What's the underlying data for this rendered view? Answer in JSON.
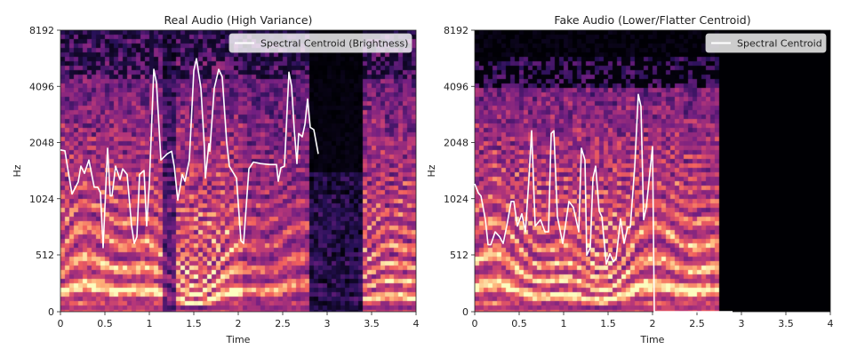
{
  "chart_data": [
    {
      "type": "heatmap",
      "title": "Real Audio (High Variance)",
      "xlabel": "Time",
      "ylabel": "Hz",
      "xlim": [
        0,
        4
      ],
      "ylim": [
        0,
        8192
      ],
      "y_scale": "log",
      "colormap": "magma",
      "xticks": [
        "0",
        "0.5",
        "1",
        "1.5",
        "2",
        "2.5",
        "3",
        "3.5",
        "4"
      ],
      "yticks": [
        "0",
        "512",
        "1024",
        "2048",
        "4096",
        "8192"
      ],
      "legend": {
        "placement": "top-right",
        "entries": [
          "Spectral Centroid (Brightness)"
        ]
      },
      "series": [
        {
          "name": "Spectral Centroid (Brightness)",
          "type": "line",
          "color": "#ffffff",
          "t": [
            0,
            0.05,
            0.1,
            0.13,
            0.2,
            0.23,
            0.27,
            0.32,
            0.38,
            0.42,
            0.45,
            0.48,
            0.5,
            0.53,
            0.56,
            0.58,
            0.62,
            0.67,
            0.7,
            0.75,
            0.8,
            0.83,
            0.86,
            0.89,
            0.94,
            0.97,
            1.0,
            1.05,
            1.08,
            1.13,
            1.2,
            1.25,
            1.28,
            1.32,
            1.37,
            1.4,
            1.45,
            1.5,
            1.53,
            1.58,
            1.62,
            1.63,
            1.67,
            1.68,
            1.73,
            1.78,
            1.82,
            1.87,
            1.9,
            1.98,
            2.03,
            2.06,
            2.12,
            2.17,
            2.25,
            2.35,
            2.43,
            2.45,
            2.48,
            2.52,
            2.57,
            2.6,
            2.63,
            2.66,
            2.68,
            2.72,
            2.75,
            2.78,
            2.81,
            2.85,
            2.9
          ],
          "hz": [
            1870,
            1850,
            1320,
            1085,
            1260,
            1530,
            1400,
            1650,
            1180,
            1180,
            1100,
            560,
            918,
            1910,
            1060,
            1060,
            1530,
            1300,
            1480,
            1380,
            733,
            590,
            640,
            1380,
            1450,
            733,
            1230,
            5050,
            4290,
            1650,
            1780,
            1840,
            1530,
            1005,
            1380,
            1270,
            1650,
            4970,
            5770,
            4000,
            1910,
            1320,
            2020,
            1840,
            4000,
            5050,
            4600,
            2050,
            1530,
            1320,
            610,
            590,
            1480,
            1610,
            1580,
            1560,
            1560,
            1270,
            1500,
            1530,
            4880,
            4100,
            2400,
            1580,
            2290,
            2200,
            2560,
            3500,
            2470,
            2400,
            1780
          ]
        }
      ]
    },
    {
      "type": "heatmap",
      "title": "Fake Audio (Lower/Flatter Centroid)",
      "xlabel": "Time",
      "ylabel": "Hz",
      "xlim": [
        0,
        4
      ],
      "ylim": [
        0,
        8192
      ],
      "y_scale": "log",
      "colormap": "magma",
      "xticks": [
        "0",
        "0.5",
        "1",
        "1.5",
        "2",
        "2.5",
        "3",
        "3.5",
        "4"
      ],
      "yticks": [
        "0",
        "512",
        "1024",
        "2048",
        "4096",
        "8192"
      ],
      "legend": {
        "placement": "top-right",
        "entries": [
          "Spectral Centroid"
        ]
      },
      "series": [
        {
          "name": "Spectral Centroid",
          "type": "line",
          "color": "#ffffff",
          "t": [
            0,
            0.04,
            0.07,
            0.12,
            0.15,
            0.18,
            0.23,
            0.28,
            0.32,
            0.36,
            0.41,
            0.44,
            0.48,
            0.53,
            0.57,
            0.61,
            0.64,
            0.68,
            0.74,
            0.79,
            0.83,
            0.86,
            0.89,
            0.93,
            0.99,
            1.06,
            1.11,
            1.17,
            1.2,
            1.24,
            1.26,
            1.3,
            1.33,
            1.36,
            1.4,
            1.43,
            1.48,
            1.52,
            1.56,
            1.59,
            1.64,
            1.68,
            1.72,
            1.75,
            1.8,
            1.84,
            1.87,
            1.9,
            1.93,
            2.0,
            2.02,
            2.9
          ],
          "hz": [
            1230,
            1100,
            1060,
            790,
            580,
            580,
            680,
            640,
            590,
            730,
            990,
            990,
            730,
            850,
            680,
            1320,
            2370,
            730,
            790,
            680,
            680,
            2290,
            2370,
            820,
            590,
            990,
            920,
            680,
            1910,
            1650,
            507,
            560,
            1320,
            1530,
            880,
            820,
            428,
            520,
            450,
            480,
            800,
            590,
            720,
            720,
            1530,
            3710,
            3200,
            790,
            920,
            1950,
            0,
            0
          ]
        }
      ]
    }
  ]
}
